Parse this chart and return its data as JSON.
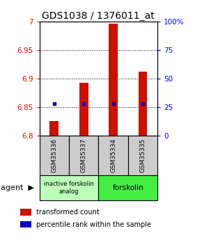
{
  "title": "GDS1038 / 1376011_at",
  "samples": [
    "GSM35336",
    "GSM35337",
    "GSM35334",
    "GSM35335"
  ],
  "bar_values": [
    6.825,
    6.893,
    6.997,
    6.912
  ],
  "bar_base": 6.8,
  "percentile_values": [
    6.856,
    6.856,
    6.856,
    6.856
  ],
  "bar_color": "#cc1100",
  "percentile_color": "#0000bb",
  "ylim_left": [
    6.8,
    7.0
  ],
  "ylim_right": [
    0,
    100
  ],
  "right_ticks": [
    0,
    25,
    50,
    75,
    100
  ],
  "right_tick_labels": [
    "0",
    "25",
    "50",
    "75",
    "100%"
  ],
  "left_ticks": [
    6.8,
    6.85,
    6.9,
    6.95,
    7.0
  ],
  "left_tick_labels": [
    "6.8",
    "6.85",
    "6.9",
    "6.95",
    "7"
  ],
  "grid_values": [
    6.85,
    6.9,
    6.95
  ],
  "group1_label": "inactive forskolin\nanalog",
  "group1_color": "#bbffbb",
  "group2_label": "forskolin",
  "group2_color": "#44ee44",
  "agent_label": "agent",
  "legend_items": [
    {
      "color": "#cc1100",
      "label": "transformed count"
    },
    {
      "color": "#0000bb",
      "label": "percentile rank within the sample"
    }
  ],
  "background_color": "#ffffff",
  "title_fontsize": 10,
  "tick_fontsize": 7.5,
  "sample_fontsize": 6.5,
  "legend_fontsize": 7,
  "agent_fontsize": 8
}
